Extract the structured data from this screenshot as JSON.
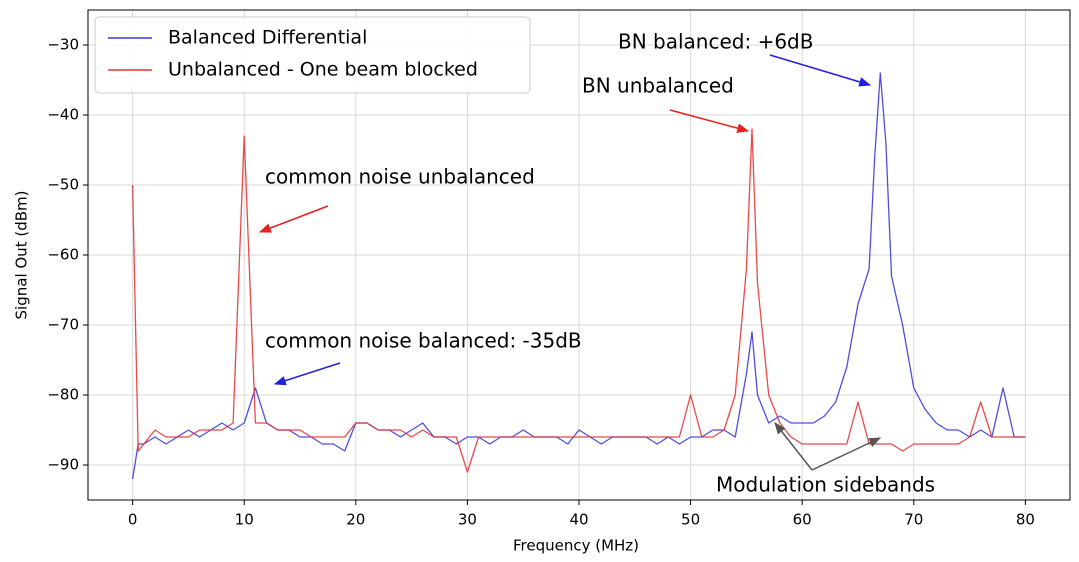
{
  "chart_data": {
    "type": "line",
    "xlabel": "Frequency (MHz)",
    "ylabel": "Signal Out (dBm)",
    "x": [
      0,
      0.5,
      1,
      2,
      3,
      4,
      5,
      6,
      7,
      8,
      9,
      10,
      11,
      12,
      13,
      14,
      15,
      16,
      17,
      18,
      19,
      20,
      21,
      22,
      23,
      24,
      25,
      26,
      27,
      28,
      29,
      30,
      31,
      32,
      33,
      34,
      35,
      36,
      37,
      38,
      39,
      40,
      41,
      42,
      43,
      44,
      45,
      46,
      47,
      48,
      49,
      50,
      51,
      52,
      53,
      54,
      55,
      55.5,
      56,
      57,
      58,
      59,
      60,
      61,
      62,
      63,
      64,
      65,
      66,
      66.5,
      67,
      67.5,
      68,
      69,
      70,
      71,
      72,
      73,
      74,
      75,
      76,
      77,
      78,
      79,
      80
    ],
    "series": [
      {
        "name": "Balanced Differential",
        "color": "#3b3be0",
        "values": [
          -92,
          -87,
          -87,
          -86,
          -87,
          -86,
          -85,
          -86,
          -85,
          -84,
          -85,
          -84,
          -79,
          -84,
          -85,
          -85,
          -86,
          -86,
          -87,
          -87,
          -88,
          -84,
          -84,
          -85,
          -85,
          -86,
          -85,
          -84,
          -86,
          -86,
          -87,
          -86,
          -86,
          -87,
          -86,
          -86,
          -85,
          -86,
          -86,
          -86,
          -87,
          -85,
          -86,
          -87,
          -86,
          -86,
          -86,
          -86,
          -87,
          -86,
          -87,
          -86,
          -86,
          -85,
          -85,
          -86,
          -77,
          -71,
          -80,
          -84,
          -83,
          -84,
          -84,
          -84,
          -83,
          -81,
          -76,
          -67,
          -62,
          -46,
          -34,
          -44,
          -63,
          -70,
          -79,
          -82,
          -84,
          -85,
          -85,
          -86,
          -85,
          -86,
          -79,
          -86,
          -86
        ]
      },
      {
        "name": "Unbalanced - One beam blocked",
        "color": "#e83535",
        "values": [
          -50,
          -88,
          -87,
          -85,
          -86,
          -86,
          -86,
          -85,
          -85,
          -85,
          -84,
          -43,
          -84,
          -84,
          -85,
          -85,
          -85,
          -86,
          -86,
          -86,
          -86,
          -84,
          -84,
          -85,
          -85,
          -85,
          -86,
          -85,
          -86,
          -86,
          -86,
          -91,
          -86,
          -86,
          -86,
          -86,
          -86,
          -86,
          -86,
          -86,
          -86,
          -86,
          -86,
          -86,
          -86,
          -86,
          -86,
          -86,
          -86,
          -86,
          -86,
          -80,
          -86,
          -86,
          -85,
          -80,
          -62,
          -42,
          -64,
          -80,
          -84,
          -86,
          -87,
          -87,
          -87,
          -87,
          -87,
          -81,
          -87,
          -87,
          -87,
          -87,
          -87,
          -88,
          -87,
          -87,
          -87,
          -87,
          -87,
          -86,
          -81,
          -86,
          -86,
          -86,
          -86
        ]
      }
    ],
    "xlim": [
      -4,
      84
    ],
    "ylim": [
      -95,
      -25
    ],
    "xticks": [
      0,
      10,
      20,
      30,
      40,
      50,
      60,
      70,
      80
    ],
    "yticks": [
      {
        "value": -90,
        "label": "−90"
      },
      {
        "value": -80,
        "label": "−80"
      },
      {
        "value": -70,
        "label": "−70"
      },
      {
        "value": -60,
        "label": "−60"
      },
      {
        "value": -50,
        "label": "−50"
      },
      {
        "value": -40,
        "label": "−40"
      },
      {
        "value": -30,
        "label": "−30"
      }
    ],
    "grid": true,
    "legend": "upper left",
    "annotations": [
      {
        "text": "common noise unbalanced",
        "color": "#e82020"
      },
      {
        "text": "common noise balanced: -35dB",
        "color": "#2020e0"
      },
      {
        "text": "BN unbalanced",
        "color": "#e82020"
      },
      {
        "text": "BN balanced: +6dB",
        "color": "#2020e0"
      },
      {
        "text": "Modulation sidebands",
        "color": "#555555"
      }
    ]
  }
}
